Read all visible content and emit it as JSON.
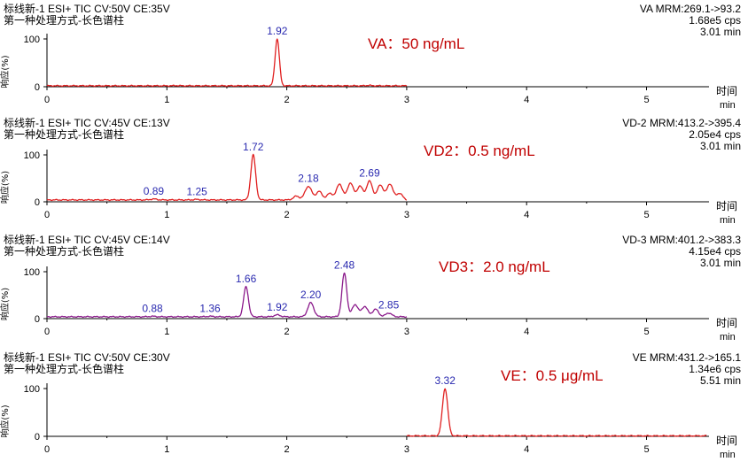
{
  "colors": {
    "red": "#e02020",
    "purple": "#8b1a8b",
    "peak_label": "#2a2ab0",
    "annotation": "#c00000",
    "axis": "#000000"
  },
  "chart_data": [
    {
      "type": "line",
      "header_left": [
        "标线新-1 ESI+ TIC CV:50V CE:35V",
        "第一种处理方式-长色谱柱"
      ],
      "header_right": [
        "VA MRM:269.1->93.2",
        "1.68e5 cps",
        "3.01 min"
      ],
      "annotation": "VA：50 ng/mL",
      "ylabel": "响应(%)",
      "xlabel": "时间",
      "xunit": "min",
      "xlim": [
        0,
        5.55
      ],
      "ylim": [
        0,
        100
      ],
      "xticks": [
        "0",
        "1",
        "2",
        "3",
        "4",
        "5"
      ],
      "yticks": [
        "0",
        "100"
      ],
      "color": "#e02020",
      "trace_range": [
        0,
        3.0
      ],
      "baseline": 2,
      "peaks": [
        {
          "x": 1.92,
          "y": 100,
          "width": 0.018,
          "label": "1.92"
        },
        {
          "x": 1.08,
          "y": 2.5,
          "width": 0.02
        },
        {
          "x": 2.68,
          "y": 3,
          "width": 0.02
        }
      ]
    },
    {
      "type": "line",
      "header_left": [
        "标线新-1 ESI+ TIC CV:45V CE:13V",
        "第一种处理方式-长色谱柱"
      ],
      "header_right": [
        "VD-2 MRM:413.2->395.4",
        "2.05e4 cps",
        "3.01 min"
      ],
      "annotation": "VD2：0.5 ng/mL",
      "ylabel": "响应(%)",
      "xlabel": "时间",
      "xunit": "min",
      "xlim": [
        0,
        5.55
      ],
      "ylim": [
        0,
        100
      ],
      "xticks": [
        "0",
        "1",
        "2",
        "3",
        "4",
        "5"
      ],
      "yticks": [
        "0",
        "100"
      ],
      "color": "#e02020",
      "trace_range": [
        0,
        3.0
      ],
      "baseline": 4,
      "peaks": [
        {
          "x": 0.89,
          "y": 6,
          "width": 0.025,
          "label": "0.89"
        },
        {
          "x": 1.25,
          "y": 5,
          "width": 0.025,
          "label": "1.25"
        },
        {
          "x": 1.72,
          "y": 100,
          "width": 0.02,
          "label": "1.72"
        },
        {
          "x": 2.08,
          "y": 12,
          "width": 0.025
        },
        {
          "x": 2.18,
          "y": 33,
          "width": 0.028,
          "label": "2.18"
        },
        {
          "x": 2.27,
          "y": 22,
          "width": 0.025
        },
        {
          "x": 2.36,
          "y": 18,
          "width": 0.025
        },
        {
          "x": 2.44,
          "y": 38,
          "width": 0.025
        },
        {
          "x": 2.53,
          "y": 40,
          "width": 0.025
        },
        {
          "x": 2.61,
          "y": 33,
          "width": 0.025
        },
        {
          "x": 2.69,
          "y": 44,
          "width": 0.025,
          "label": "2.69"
        },
        {
          "x": 2.78,
          "y": 36,
          "width": 0.025
        },
        {
          "x": 2.86,
          "y": 38,
          "width": 0.025
        },
        {
          "x": 2.94,
          "y": 18,
          "width": 0.025
        }
      ]
    },
    {
      "type": "line",
      "header_left": [
        "标线新-1 ESI+ TIC CV:45V CE:14V",
        "第一种处理方式-长色谱柱"
      ],
      "header_right": [
        "VD-3 MRM:401.2->383.3",
        "4.15e4 cps",
        "3.01 min"
      ],
      "annotation": "VD3：2.0 ng/mL",
      "ylabel": "响应(%)",
      "xlabel": "时间",
      "xunit": "min",
      "xlim": [
        0,
        5.55
      ],
      "ylim": [
        0,
        100
      ],
      "xticks": [
        "0",
        "1",
        "2",
        "3",
        "4",
        "5"
      ],
      "yticks": [
        "0",
        "100"
      ],
      "color": "#8b1a8b",
      "trace_range": [
        0,
        3.0
      ],
      "baseline": 4,
      "peaks": [
        {
          "x": 0.88,
          "y": 5,
          "width": 0.025,
          "label": "0.88"
        },
        {
          "x": 1.36,
          "y": 5,
          "width": 0.025,
          "label": "1.36"
        },
        {
          "x": 1.66,
          "y": 68,
          "width": 0.02,
          "label": "1.66"
        },
        {
          "x": 1.92,
          "y": 8,
          "width": 0.025,
          "label": "1.92"
        },
        {
          "x": 2.2,
          "y": 34,
          "width": 0.025,
          "label": "2.20"
        },
        {
          "x": 2.48,
          "y": 97,
          "width": 0.02,
          "label": "2.48"
        },
        {
          "x": 2.57,
          "y": 30,
          "width": 0.025
        },
        {
          "x": 2.65,
          "y": 26,
          "width": 0.025
        },
        {
          "x": 2.74,
          "y": 20,
          "width": 0.025
        },
        {
          "x": 2.85,
          "y": 12,
          "width": 0.025,
          "label": "2.85"
        }
      ]
    },
    {
      "type": "line",
      "header_left": [
        "标线新-1 ESI+ TIC CV:50V CE:30V",
        "第一种处理方式-长色谱柱"
      ],
      "header_right": [
        "VE MRM:431.2->165.1",
        "1.34e6 cps",
        "5.51 min"
      ],
      "annotation": "VE：0.5 μg/mL",
      "ylabel": "响应(%)",
      "xlabel": "时间",
      "xunit": "min",
      "xlim": [
        0,
        5.55
      ],
      "ylim": [
        0,
        100
      ],
      "xticks": [
        "0",
        "1",
        "2",
        "3",
        "4",
        "5"
      ],
      "yticks": [
        "0",
        "100"
      ],
      "color": "#e02020",
      "trace_range": [
        3.0,
        5.5
      ],
      "baseline": 1,
      "peaks": [
        {
          "x": 3.32,
          "y": 100,
          "width": 0.022,
          "label": "3.32"
        }
      ]
    }
  ]
}
